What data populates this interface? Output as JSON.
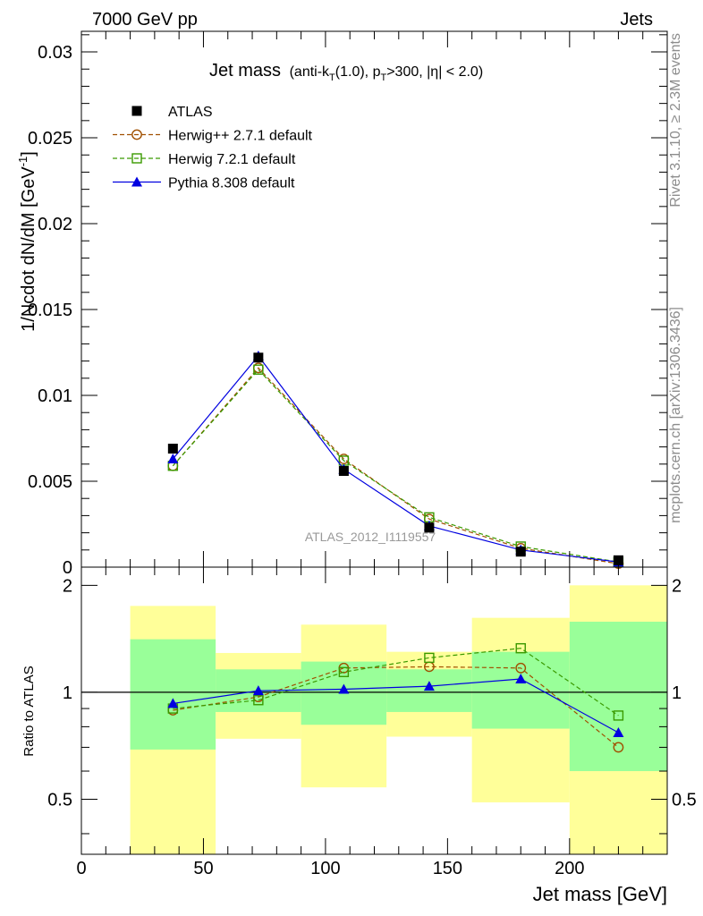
{
  "header": {
    "left": "7000 GeV pp",
    "right": "Jets"
  },
  "side_labels": {
    "rivet": "Rivet 3.1.10, ≥ 2.3M events",
    "mcplots": "mcplots.cern.ch [arXiv:1306.3436]"
  },
  "watermark": "ATLAS_2012_I1119557",
  "colors": {
    "atlas": "#000000",
    "herwigpp": "#a05000",
    "herwig7": "#3a9a00",
    "pythia": "#0000e0",
    "band_inner": "#99ff99",
    "band_outer": "#ffff99"
  },
  "chart_data": [
    {
      "type": "line",
      "title": "Jet mass (anti-k_T(1.0), p_T>300, |η| < 2.0)",
      "title_parts": {
        "main": "Jet mass",
        "p1": "(anti-k",
        "s1": "T",
        "p2": "(1.0), p",
        "s2": "T",
        "p3": ">300, |η| < 2.0)"
      },
      "ylabel": "1/Ncdot dN/dM [GeV⁻¹]",
      "ylabel_parts": {
        "main": "1/Ncdot dN/dM [GeV",
        "sup": "-1",
        "end": "]"
      },
      "xlim": [
        0,
        240
      ],
      "ylim": [
        0,
        0.0312
      ],
      "y_ticks": [
        0,
        0.005,
        0.01,
        0.015,
        0.02,
        0.025,
        0.03
      ],
      "y_tick_labels": [
        "0",
        "0.005",
        "0.01",
        "0.015",
        "0.02",
        "0.025",
        "0.03"
      ],
      "legend_position": "top-left",
      "series": [
        {
          "name": "ATLAS",
          "marker": "filled-square",
          "x": [
            37.5,
            72.5,
            107.5,
            142.5,
            180,
            220
          ],
          "y": [
            0.0069,
            0.0122,
            0.0056,
            0.0023,
            0.0009,
            0.0004
          ]
        },
        {
          "name": "Herwig++ 2.7.1 default",
          "marker": "open-circle",
          "dashed": true,
          "x": [
            37.5,
            72.5,
            107.5,
            142.5,
            180,
            220
          ],
          "y": [
            0.0059,
            0.0116,
            0.0063,
            0.0028,
            0.0011,
            0.0002
          ]
        },
        {
          "name": "Herwig 7.2.1 default",
          "marker": "open-square",
          "dashed": true,
          "x": [
            37.5,
            72.5,
            107.5,
            142.5,
            180,
            220
          ],
          "y": [
            0.0059,
            0.0115,
            0.0062,
            0.0029,
            0.0012,
            0.0003
          ]
        },
        {
          "name": "Pythia 8.308 default",
          "marker": "filled-triangle",
          "x": [
            37.5,
            72.5,
            107.5,
            142.5,
            180,
            220
          ],
          "y": [
            0.0063,
            0.0123,
            0.0057,
            0.0024,
            0.001,
            0.0003
          ]
        }
      ]
    },
    {
      "type": "line",
      "ylabel": "Ratio to ATLAS",
      "xlabel": "Jet mass [GeV]",
      "xlim": [
        0,
        240
      ],
      "ylim": [
        0.35,
        2.25
      ],
      "y_ticks": [
        0.5,
        1,
        2
      ],
      "y_tick_labels": [
        "0.5",
        "1",
        "2"
      ],
      "x_ticks": [
        0,
        50,
        100,
        150,
        200
      ],
      "x_tick_labels": [
        "0",
        "50",
        "100",
        "150",
        "200"
      ],
      "reference_line": 1,
      "bands": [
        {
          "x": [
            20,
            55
          ],
          "inner": [
            0.69,
            1.41
          ],
          "outer": [
            0.35,
            1.75
          ]
        },
        {
          "x": [
            55,
            90
          ],
          "inner": [
            0.88,
            1.16
          ],
          "outer": [
            0.74,
            1.29
          ]
        },
        {
          "x": [
            90,
            125
          ],
          "inner": [
            0.81,
            1.22
          ],
          "outer": [
            0.54,
            1.55
          ]
        },
        {
          "x": [
            125,
            160
          ],
          "inner": [
            0.88,
            1.16
          ],
          "outer": [
            0.75,
            1.3
          ]
        },
        {
          "x": [
            160,
            200
          ],
          "inner": [
            0.79,
            1.3
          ],
          "outer": [
            0.49,
            1.62
          ]
        },
        {
          "x": [
            200,
            240
          ],
          "inner": [
            0.6,
            1.58
          ],
          "outer": [
            0.35,
            2.0
          ]
        }
      ],
      "series": [
        {
          "name": "Herwig++ 2.7.1 default",
          "marker": "open-circle",
          "dashed": true,
          "x": [
            37.5,
            72.5,
            107.5,
            142.5,
            180,
            220
          ],
          "y": [
            0.89,
            0.97,
            1.17,
            1.18,
            1.17,
            0.7
          ]
        },
        {
          "name": "Herwig 7.2.1 default",
          "marker": "open-square",
          "dashed": true,
          "x": [
            37.5,
            72.5,
            107.5,
            142.5,
            180,
            220
          ],
          "y": [
            0.9,
            0.95,
            1.14,
            1.25,
            1.33,
            0.86
          ]
        },
        {
          "name": "Pythia 8.308 default",
          "marker": "filled-triangle",
          "x": [
            37.5,
            72.5,
            107.5,
            142.5,
            180,
            220
          ],
          "y": [
            0.93,
            1.01,
            1.02,
            1.04,
            1.09,
            0.77
          ]
        }
      ]
    }
  ]
}
